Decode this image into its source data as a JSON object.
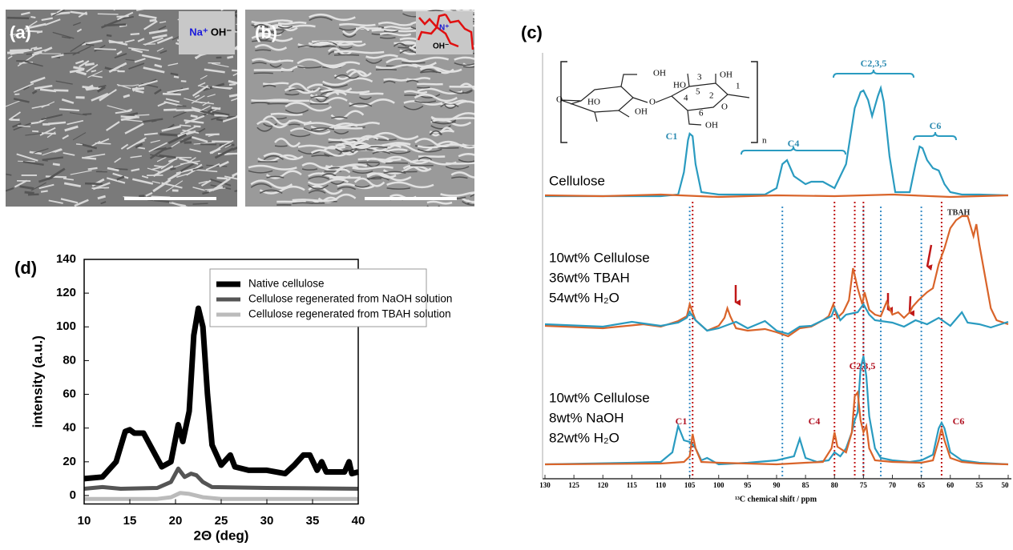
{
  "panels": {
    "a": {
      "label": "(a)",
      "inset": [
        "Na⁺",
        "OH⁻"
      ]
    },
    "b": {
      "label": "(b)",
      "inset": [
        "N⁺",
        "OH⁻"
      ]
    }
  },
  "structure": {
    "labels": [
      "OH",
      "HO",
      "O",
      "OH",
      "O",
      "HO",
      "3",
      "OH",
      "4",
      "5",
      "2",
      "O",
      "1",
      "6",
      "OH",
      "n"
    ]
  },
  "chart_data": [
    {
      "type": "line",
      "panel_label": "(d)",
      "xlabel": "2Θ (deg)",
      "ylabel": "intensity (a.u.)",
      "xlim": [
        10,
        40
      ],
      "ylim": [
        -5,
        140
      ],
      "xticks": [
        10,
        15,
        20,
        25,
        30,
        35,
        40
      ],
      "yticks": [
        0,
        20,
        40,
        60,
        80,
        100,
        120,
        140
      ],
      "legend": "upper right",
      "series": [
        {
          "name": "Native cellulose",
          "color": "#000000",
          "x": [
            10,
            12,
            13.5,
            14.5,
            15,
            15.5,
            16.5,
            17.5,
            18.5,
            19.5,
            20.3,
            20.8,
            21.5,
            22,
            22.5,
            23,
            23.5,
            24,
            25,
            26,
            26.5,
            28,
            30,
            32,
            33,
            34,
            34.7,
            35.5,
            36,
            36.5,
            38.5,
            39,
            39.3,
            40
          ],
          "values": [
            10,
            11,
            20,
            38,
            39,
            37,
            37,
            27,
            17,
            20,
            42,
            32,
            50,
            95,
            111,
            100,
            60,
            30,
            18,
            24,
            17,
            15,
            15,
            13,
            18,
            24,
            24,
            15,
            20,
            14,
            14,
            20,
            13,
            14
          ]
        },
        {
          "name": "Cellulose regenerated from NaOH solution",
          "color": "#555555",
          "x": [
            10,
            12,
            14,
            18,
            19.5,
            20.3,
            21,
            21.7,
            22.3,
            23,
            24,
            30,
            40
          ],
          "values": [
            4,
            5,
            4,
            4.5,
            8,
            16,
            11,
            13,
            12,
            8,
            5,
            4.5,
            4
          ]
        },
        {
          "name": "Cellulose regenerated from TBAH solution",
          "color": "#bbbbbb",
          "x": [
            10,
            18,
            19.5,
            20.5,
            21.5,
            23,
            25,
            40
          ],
          "values": [
            -2,
            -2,
            -1,
            1.5,
            1,
            -1,
            -2,
            -2
          ]
        }
      ]
    },
    {
      "type": "spectrum",
      "panel_label": "(c)",
      "xlabel": "¹³C chemical shift / ppm",
      "xlim": [
        130,
        50
      ],
      "xticks": [
        130,
        125,
        120,
        115,
        110,
        105,
        100,
        95,
        90,
        85,
        80,
        75,
        70,
        65,
        60,
        55,
        50
      ],
      "samples": [
        {
          "lines": [
            "Cellulose"
          ],
          "series": [
            {
              "color": "#2a9bc0",
              "x": [
                130,
                110,
                107,
                106,
                105.3,
                105,
                104.5,
                104,
                103,
                100,
                92,
                90,
                89,
                88.2,
                87,
                85,
                84,
                82,
                80,
                78,
                76.5,
                75.5,
                75,
                74.2,
                73.5,
                72.5,
                72,
                71.5,
                70.5,
                69.5,
                67,
                66,
                65.3,
                64.8,
                64,
                63,
                62,
                61,
                60,
                58,
                55,
                50
              ],
              "values": [
                0,
                0,
                2,
                30,
                70,
                78,
                75,
                40,
                5,
                2,
                2,
                10,
                40,
                45,
                25,
                15,
                18,
                18,
                10,
                40,
                110,
                130,
                132,
                120,
                100,
                125,
                135,
                118,
                50,
                5,
                5,
                40,
                62,
                60,
                45,
                35,
                32,
                15,
                5,
                2,
                2,
                1
              ]
            },
            {
              "color": "#d9642a",
              "x": [
                130,
                120,
                110,
                100,
                90,
                80,
                70,
                60,
                50
              ],
              "values": [
                1,
                0,
                2,
                -1,
                1,
                0,
                2,
                -1,
                1
              ]
            }
          ]
        },
        {
          "lines": [
            "10wt% Cellulose",
            "36wt% TBAH",
            "54wt% H₂O"
          ],
          "series": [
            {
              "color": "#d9642a",
              "x": [
                130,
                120,
                113,
                110,
                107,
                105.5,
                105,
                104,
                102,
                100,
                99,
                98.5,
                98,
                97,
                95,
                92,
                90,
                88,
                86,
                84,
                82,
                81,
                80.2,
                79.5,
                78.5,
                77.5,
                76.8,
                76,
                75.2,
                74.8,
                74,
                73,
                72,
                71,
                70,
                69,
                68,
                67,
                66.5,
                65.5,
                64,
                63,
                62,
                61,
                60,
                59,
                58,
                57,
                56,
                55.5,
                55,
                54,
                53,
                52,
                50
              ],
              "values": [
                -2,
                -5,
                0,
                -3,
                4,
                10,
                25,
                5,
                -8,
                -2,
                8,
                20,
                10,
                -5,
                -8,
                -6,
                -10,
                -15,
                -5,
                -3,
                5,
                10,
                25,
                8,
                15,
                30,
                70,
                45,
                25,
                40,
                18,
                12,
                10,
                28,
                12,
                15,
                8,
                15,
                22,
                30,
                40,
                45,
                75,
                95,
                120,
                130,
                135,
                135,
                110,
                125,
                100,
                60,
                20,
                5,
                0
              ]
            },
            {
              "color": "#2a9bc0",
              "x": [
                130,
                120,
                115,
                110,
                107,
                105.5,
                105,
                104,
                102,
                100,
                97,
                95,
                92,
                90,
                88,
                86,
                84,
                82,
                80.5,
                80,
                79,
                78,
                76,
                75,
                74,
                73,
                70,
                68,
                66,
                64,
                62,
                60,
                58,
                57,
                55,
                53,
                50
              ],
              "values": [
                0,
                -3,
                3,
                -2,
                2,
                8,
                15,
                5,
                -8,
                -5,
                3,
                -5,
                4,
                -8,
                -12,
                -3,
                -2,
                5,
                10,
                20,
                5,
                12,
                15,
                25,
                12,
                5,
                2,
                -3,
                5,
                0,
                8,
                -2,
                15,
                2,
                0,
                -4,
                3
              ]
            }
          ]
        },
        {
          "lines": [
            "10wt% Cellulose",
            "8wt% NaOH",
            "82wt% H₂O"
          ],
          "series": [
            {
              "color": "#2a9bc0",
              "x": [
                130,
                115,
                110,
                108,
                107,
                106,
                105,
                104.5,
                104,
                103,
                102,
                100,
                95,
                90,
                87,
                86,
                85,
                83,
                81,
                80,
                79,
                78,
                77,
                76.5,
                76,
                75.5,
                75,
                74.5,
                74,
                73,
                72,
                70,
                67,
                65,
                63,
                62,
                61.5,
                61,
                60,
                58,
                55,
                50
              ],
              "values": [
                0,
                2,
                3,
                15,
                48,
                30,
                28,
                25,
                20,
                5,
                8,
                0,
                2,
                5,
                10,
                32,
                8,
                3,
                5,
                15,
                10,
                20,
                40,
                55,
                65,
                120,
                135,
                110,
                60,
                20,
                8,
                5,
                3,
                5,
                12,
                45,
                52,
                45,
                15,
                5,
                2,
                0
              ]
            },
            {
              "color": "#d9642a",
              "x": [
                130,
                110,
                106,
                105,
                104.5,
                104,
                103,
                100,
                90,
                85,
                82,
                80.5,
                80,
                79.5,
                78,
                77,
                76.5,
                76,
                75.5,
                75,
                74.5,
                74,
                73,
                70,
                65,
                63,
                62,
                61.5,
                61,
                60,
                58,
                55,
                50
              ],
              "values": [
                0,
                1,
                3,
                10,
                38,
                20,
                3,
                2,
                0,
                2,
                3,
                20,
                40,
                22,
                15,
                40,
                85,
                90,
                55,
                40,
                48,
                20,
                5,
                3,
                2,
                5,
                30,
                45,
                30,
                8,
                3,
                1,
                0
              ]
            }
          ]
        }
      ],
      "guides": [
        {
          "color": "#3a8fc8",
          "x": [
            105,
            89,
            75,
            72,
            65
          ]
        },
        {
          "color": "#c01818",
          "x": [
            104.5,
            80,
            76.5,
            75,
            61.5
          ]
        }
      ],
      "peak_labels": [
        "C1",
        "C4",
        "C2,3,5",
        "C6",
        "TBAH",
        "C2,3,5",
        "C1",
        "C4",
        "C6"
      ]
    }
  ]
}
